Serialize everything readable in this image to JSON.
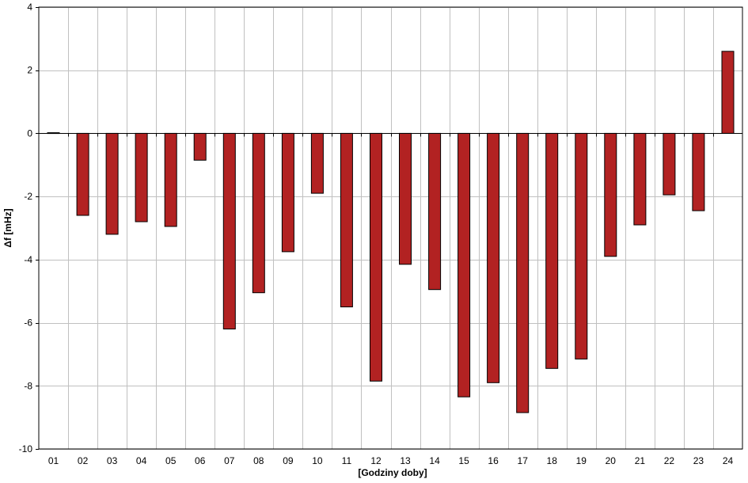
{
  "chart_data": {
    "type": "bar",
    "title": "",
    "xlabel": "[Godziny doby]",
    "ylabel": "Δf [mHz]",
    "ylim": [
      -10,
      4
    ],
    "yticks": [
      4,
      2,
      0,
      -2,
      -4,
      -6,
      -8,
      -10
    ],
    "grid": true,
    "legend": "none",
    "categories": [
      "01",
      "02",
      "03",
      "04",
      "05",
      "06",
      "07",
      "08",
      "09",
      "10",
      "11",
      "12",
      "13",
      "14",
      "15",
      "16",
      "17",
      "18",
      "19",
      "20",
      "21",
      "22",
      "23",
      "24"
    ],
    "series": [
      {
        "values": [
          0.02,
          -2.6,
          -3.2,
          -2.8,
          -2.95,
          -0.85,
          -6.2,
          -5.05,
          -3.75,
          -1.9,
          -5.5,
          -7.85,
          -4.15,
          -4.95,
          -8.35,
          -7.9,
          -8.85,
          -7.45,
          -7.15,
          -3.9,
          -2.9,
          -1.95,
          -2.45,
          2.6
        ],
        "color": "#b22222"
      }
    ]
  }
}
